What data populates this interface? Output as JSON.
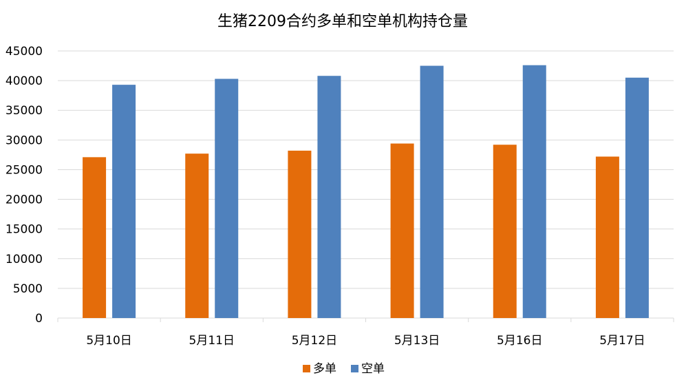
{
  "chart_data": {
    "type": "bar",
    "title": "生猪2209合约多单和空单机构持仓量",
    "xlabel": "",
    "ylabel": "",
    "categories": [
      "5月10日",
      "5月11日",
      "5月12日",
      "5月13日",
      "5月16日",
      "5月17日"
    ],
    "series": [
      {
        "name": "多单",
        "color": "#E46C0A",
        "values": [
          27100,
          27700,
          28200,
          29400,
          29200,
          27200
        ]
      },
      {
        "name": "空单",
        "color": "#4F81BD",
        "values": [
          39300,
          40300,
          40800,
          42500,
          42600,
          40500
        ]
      }
    ],
    "ylim": [
      0,
      45000
    ],
    "yticks": [
      "0",
      "5000",
      "10000",
      "15000",
      "20000",
      "25000",
      "30000",
      "35000",
      "40000",
      "45000"
    ],
    "grid": true,
    "gridColor": "#D9D9D9",
    "legend_position": "bottom"
  }
}
